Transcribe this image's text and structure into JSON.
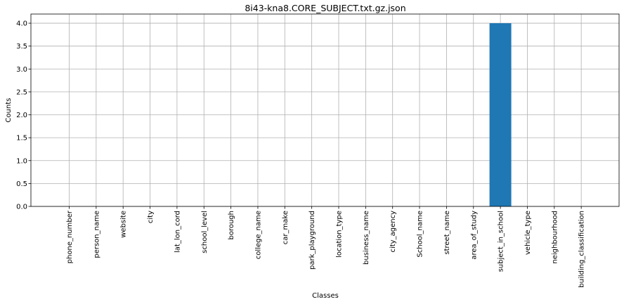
{
  "chart_data": {
    "type": "bar",
    "title": "8i43-kna8.CORE_SUBJECT.txt.gz.json",
    "xlabel": "Classes",
    "ylabel": "Counts",
    "categories": [
      "phone_number",
      "person_name",
      "website",
      "city",
      "lat_lon_cord",
      "school_level",
      "borough",
      "college_name",
      "car_make",
      "park_playground",
      "location_type",
      "business_name",
      "city_agency",
      "School_name",
      "street_name",
      "area_of_study",
      "subject_in_school",
      "vehicle_type",
      "neighbourhood",
      "building_classification"
    ],
    "values": [
      0,
      0,
      0,
      0,
      0,
      0,
      0,
      0,
      0,
      0,
      0,
      0,
      0,
      0,
      0,
      0,
      4,
      0,
      0,
      0
    ],
    "ylim": [
      0,
      4.2
    ],
    "yticks": [
      "0.0",
      "0.5",
      "1.0",
      "1.5",
      "2.0",
      "2.5",
      "3.0",
      "3.5",
      "4.0"
    ],
    "grid": true,
    "bar_color": "#1f77b4"
  }
}
